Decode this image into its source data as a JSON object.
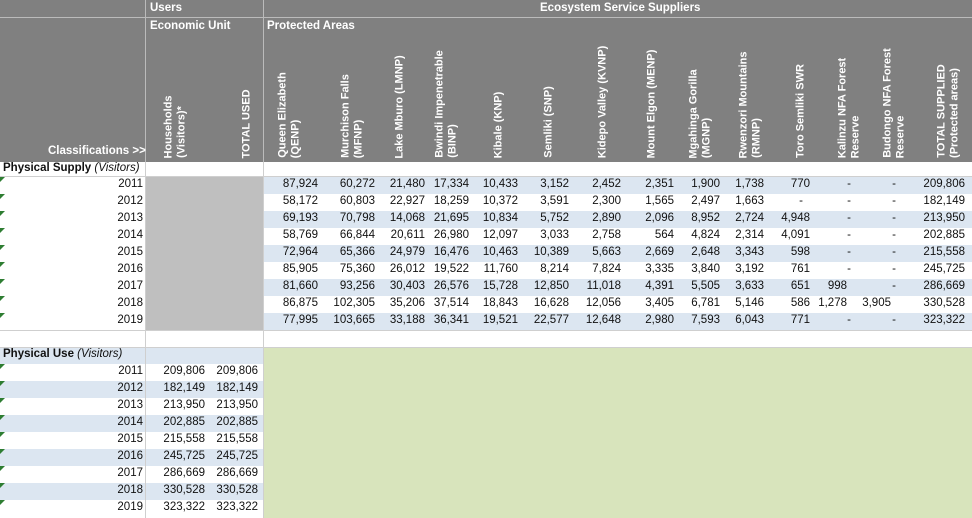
{
  "header": {
    "users": "Users",
    "economic_unit": "Economic Unit",
    "suppliers": "Ecosystem Service Suppliers",
    "protected_areas": "Protected Areas",
    "classifications": "Classifications >>"
  },
  "user_columns": [
    {
      "line1": "Households",
      "line2": "(Visitors)*"
    },
    {
      "line1": "TOTAL USED",
      "line2": ""
    }
  ],
  "supplier_columns": [
    {
      "line1": "Queen Elizabeth",
      "line2": "(QENP)"
    },
    {
      "line1": "Murchison Falls",
      "line2": "(MFNP)"
    },
    {
      "line1": "Lake Mburo (LMNP)",
      "line2": ""
    },
    {
      "line1": "Bwindi Impenetrable",
      "line2": "(BINP)"
    },
    {
      "line1": "Kibale (KNP)",
      "line2": ""
    },
    {
      "line1": "Semliki (SNP)",
      "line2": ""
    },
    {
      "line1": "Kidepo Valley (KVNP)",
      "line2": ""
    },
    {
      "line1": "Mount Elgon (MENP)",
      "line2": ""
    },
    {
      "line1": "Mgahinga Gorilla",
      "line2": "(MGNP)"
    },
    {
      "line1": "Rwenzori Mountains",
      "line2": "(RMNP)"
    },
    {
      "line1": "Toro Semliki SWR",
      "line2": ""
    },
    {
      "line1": "Kalinzu NFA Forest",
      "line2": "Reserve"
    },
    {
      "line1": "Budongo NFA Forest",
      "line2": "Reserve"
    },
    {
      "line1": "TOTAL SUPPLIED",
      "line2": "(Protected areas)"
    }
  ],
  "physical_supply": {
    "label": "Physical Supply",
    "unit": "(Visitors)",
    "rows": [
      {
        "year": "2011",
        "values": [
          "87,924",
          "60,272",
          "21,480",
          "17,334",
          "10,433",
          "3,152",
          "2,452",
          "2,351",
          "1,900",
          "1,738",
          "770",
          "-",
          "-",
          "209,806"
        ]
      },
      {
        "year": "2012",
        "values": [
          "58,172",
          "60,803",
          "22,927",
          "18,259",
          "10,372",
          "3,591",
          "2,300",
          "1,565",
          "2,497",
          "1,663",
          "-",
          "-",
          "-",
          "182,149"
        ]
      },
      {
        "year": "2013",
        "values": [
          "69,193",
          "70,798",
          "14,068",
          "21,695",
          "10,834",
          "5,752",
          "2,890",
          "2,096",
          "8,952",
          "2,724",
          "4,948",
          "-",
          "-",
          "213,950"
        ]
      },
      {
        "year": "2014",
        "values": [
          "58,769",
          "66,844",
          "20,611",
          "26,980",
          "12,097",
          "3,033",
          "2,758",
          "564",
          "4,824",
          "2,314",
          "4,091",
          "-",
          "-",
          "202,885"
        ]
      },
      {
        "year": "2015",
        "values": [
          "72,964",
          "65,366",
          "24,979",
          "16,476",
          "10,463",
          "10,389",
          "5,663",
          "2,669",
          "2,648",
          "3,343",
          "598",
          "-",
          "-",
          "215,558"
        ]
      },
      {
        "year": "2016",
        "values": [
          "85,905",
          "75,360",
          "26,012",
          "19,522",
          "11,760",
          "8,214",
          "7,824",
          "3,335",
          "3,840",
          "3,192",
          "761",
          "-",
          "-",
          "245,725"
        ]
      },
      {
        "year": "2017",
        "values": [
          "81,660",
          "93,256",
          "30,403",
          "26,576",
          "15,728",
          "12,850",
          "11,018",
          "4,391",
          "5,505",
          "3,633",
          "651",
          "998",
          "-",
          "286,669"
        ]
      },
      {
        "year": "2018",
        "values": [
          "86,875",
          "102,305",
          "35,206",
          "37,514",
          "18,843",
          "16,628",
          "12,056",
          "3,405",
          "6,781",
          "5,146",
          "586",
          "1,278",
          "3,905",
          "330,528"
        ]
      },
      {
        "year": "2019",
        "values": [
          "77,995",
          "103,665",
          "33,188",
          "36,341",
          "19,521",
          "22,577",
          "12,648",
          "2,980",
          "7,593",
          "6,043",
          "771",
          "-",
          "-",
          "323,322"
        ]
      }
    ]
  },
  "physical_use": {
    "label": "Physical Use",
    "unit": "(Visitors)",
    "rows": [
      {
        "year": "2011",
        "values": [
          "209,806",
          "209,806"
        ]
      },
      {
        "year": "2012",
        "values": [
          "182,149",
          "182,149"
        ]
      },
      {
        "year": "2013",
        "values": [
          "213,950",
          "213,950"
        ]
      },
      {
        "year": "2014",
        "values": [
          "202,885",
          "202,885"
        ]
      },
      {
        "year": "2015",
        "values": [
          "215,558",
          "215,558"
        ]
      },
      {
        "year": "2016",
        "values": [
          "245,725",
          "245,725"
        ]
      },
      {
        "year": "2017",
        "values": [
          "286,669",
          "286,669"
        ]
      },
      {
        "year": "2018",
        "values": [
          "330,528",
          "330,528"
        ]
      },
      {
        "year": "2019",
        "values": [
          "323,322",
          "323,322"
        ]
      }
    ]
  },
  "colors": {
    "header_grey": "#808080",
    "row_blue": "#dce6f1",
    "grey_block": "#bfbfbf",
    "green_block": "#d8e4bc",
    "grid_line": "#cfcfcf"
  }
}
